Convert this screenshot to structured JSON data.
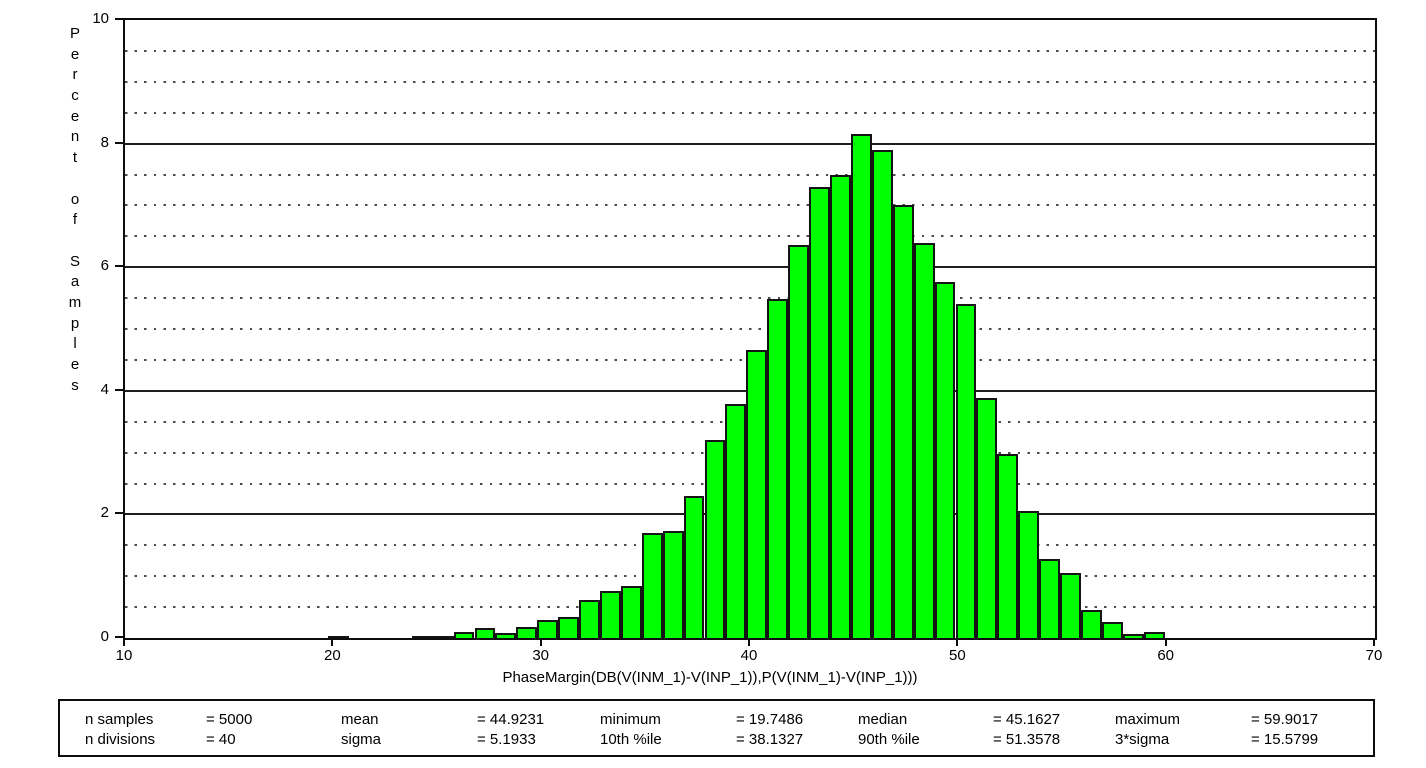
{
  "chart_data": {
    "type": "bar",
    "title": "",
    "xlabel": "PhaseMargin(DB(V(INM_1)-V(INP_1)),P(V(INM_1)-V(INP_1)))",
    "ylabel": "Percent of Samples",
    "xlim": [
      10,
      70
    ],
    "ylim": [
      0,
      10
    ],
    "x_ticks": [
      10,
      20,
      30,
      40,
      50,
      60,
      70
    ],
    "y_ticks": [
      0,
      2,
      4,
      6,
      8,
      10
    ],
    "grid": "solid lines every 2 units, dotted lines every 0.5 units",
    "legend_position": "none",
    "bar_color": "#00ff00",
    "bar_border_color": "#141414",
    "bin_min": 19.7486,
    "bin_width": 1.00383,
    "n_bins": 40,
    "values": [
      0.04,
      0,
      0,
      0,
      0.04,
      0.04,
      0.1,
      0.16,
      0.08,
      0.18,
      0.3,
      0.34,
      0.62,
      0.76,
      0.84,
      1.7,
      1.74,
      2.3,
      3.2,
      3.78,
      4.66,
      5.48,
      6.36,
      7.3,
      7.5,
      8.16,
      7.9,
      7.0,
      6.4,
      5.76,
      5.4,
      3.88,
      2.98,
      2.06,
      1.28,
      1.06,
      0.46,
      0.26,
      0.06,
      0.1
    ]
  },
  "stats": {
    "rows": [
      [
        {
          "label": "n samples",
          "value": "= 5000"
        },
        {
          "label": "mean",
          "value": "= 44.9231"
        },
        {
          "label": "minimum",
          "value": "= 19.7486"
        },
        {
          "label": "median",
          "value": "= 45.1627"
        },
        {
          "label": "maximum",
          "value": "= 59.9017"
        }
      ],
      [
        {
          "label": "n divisions",
          "value": "= 40"
        },
        {
          "label": "sigma",
          "value": "= 5.1933"
        },
        {
          "label": "10th %ile",
          "value": "= 38.1327"
        },
        {
          "label": "90th %ile",
          "value": "= 51.3578"
        },
        {
          "label": "3*sigma",
          "value": "= 15.5799"
        }
      ]
    ]
  }
}
